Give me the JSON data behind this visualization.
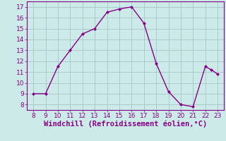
{
  "x": [
    8,
    9,
    10,
    11,
    12,
    13,
    14,
    15,
    16,
    17,
    18,
    19,
    20,
    21,
    22,
    22.5,
    23
  ],
  "y": [
    9,
    9,
    11.5,
    13,
    14.5,
    15,
    16.5,
    16.8,
    17,
    15.5,
    11.8,
    9.2,
    8.0,
    7.8,
    11.5,
    11.2,
    10.8
  ],
  "line_color": "#880088",
  "marker_color": "#880088",
  "bg_color": "#cceae8",
  "grid_color": "#aacccc",
  "xlabel": "Windchill (Refroidissement éolien,°C)",
  "xlabel_color": "#880088",
  "xlim": [
    7.5,
    23.5
  ],
  "ylim": [
    7.5,
    17.5
  ],
  "xticks": [
    8,
    9,
    10,
    11,
    12,
    13,
    14,
    15,
    16,
    17,
    18,
    19,
    20,
    21,
    22,
    23
  ],
  "yticks": [
    8,
    9,
    10,
    11,
    12,
    13,
    14,
    15,
    16,
    17
  ],
  "tick_color": "#880088",
  "tick_labelsize": 6.5,
  "xlabel_fontsize": 7.5
}
